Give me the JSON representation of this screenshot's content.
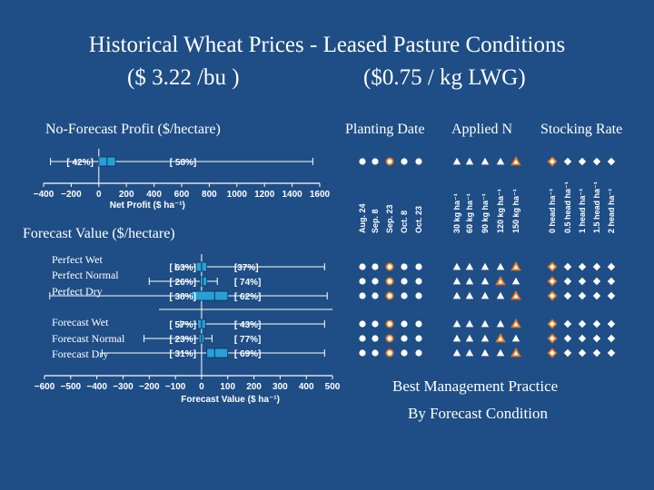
{
  "title": {
    "line1": "Historical Wheat Prices - Leased Pasture Conditions",
    "price_wheat": "($ 3.22 /bu )",
    "price_lwg": "($0.75 / kg LWG)"
  },
  "nofc_label": "No-Forecast Profit ($/hectare)",
  "column_headers": {
    "planting": "Planting Date",
    "nitrogen": "Applied N",
    "stocking": "Stocking Rate"
  },
  "forecast_label": "Forecast Value ($/hectare)",
  "bmp": {
    "line1": "Best Management Practice",
    "line2": "By Forecast Condition"
  },
  "col_labels": {
    "planting": [
      "Aug. 24",
      "Sep. 8",
      "Sep. 23",
      "Oct. 8",
      "Oct. 23"
    ],
    "nitrogen": [
      "30 kg ha-1",
      "60 kg ha-1",
      "90 kg ha-1",
      "120 kg ha-1",
      "150 kg ha-1"
    ],
    "stocking": [
      "0 head ha-1",
      "0.5 head ha-1",
      "1 head ha-1",
      "1.5 head ha-1",
      "2 head ha-1"
    ]
  },
  "colors": {
    "background": "#1f4e86",
    "box": "#27a0d6",
    "highlight": "#e8761c",
    "marker": "#ffffff"
  },
  "chart_data": [
    {
      "type": "box",
      "title": "No-Forecast Profit ($/hectare)",
      "xlabel": "Net Profit ($ ha-1)",
      "xlim": [
        -400,
        1600
      ],
      "xticks": [
        -400,
        -200,
        0,
        200,
        400,
        600,
        800,
        1000,
        1200,
        1400,
        1600
      ],
      "rows": [
        {
          "name": "",
          "min": -350,
          "q1": 0,
          "median": 60,
          "q3": 120,
          "max": 1550,
          "below_zero_pct": "[ 42%]",
          "above_zero_pct": "[ 58%]"
        }
      ]
    },
    {
      "type": "box",
      "title": "Forecast Value ($/hectare)",
      "xlabel": "Forecast Value ($ ha-1)",
      "xlim": [
        -600,
        500
      ],
      "xticks": [
        -600,
        -500,
        -400,
        -300,
        -200,
        -100,
        0,
        100,
        200,
        300,
        400,
        500
      ],
      "rows": [
        {
          "name": "Perfect Wet",
          "min": -100,
          "q1": -20,
          "median": 0,
          "q3": 20,
          "max": 470,
          "below_zero_pct": "[ 63%]",
          "above_zero_pct": "[37%]"
        },
        {
          "name": "Perfect Normal",
          "min": -200,
          "q1": -5,
          "median": 5,
          "q3": 20,
          "max": 60,
          "below_zero_pct": "[ 26%]",
          "above_zero_pct": "[ 74%]"
        },
        {
          "name": "Perfect Dry",
          "min": -580,
          "q1": -40,
          "median": 50,
          "q3": 100,
          "max": 480,
          "below_zero_pct": "[ 38%]",
          "above_zero_pct": "[ 62%]"
        },
        {
          "name": "Forecast Wet",
          "min": -80,
          "q1": -15,
          "median": 0,
          "q3": 15,
          "max": 470,
          "below_zero_pct": "[ 57%]",
          "above_zero_pct": "[ 43%]"
        },
        {
          "name": "Forecast  Normal",
          "min": -220,
          "q1": -10,
          "median": 0,
          "q3": 10,
          "max": 40,
          "below_zero_pct": "[ 23%]",
          "above_zero_pct": "[ 77%]"
        },
        {
          "name": "Forecast  Dry",
          "min": -380,
          "q1": 20,
          "median": 50,
          "q3": 100,
          "max": 470,
          "below_zero_pct": "[ 31%]",
          "above_zero_pct": "[ 69%]"
        }
      ]
    },
    {
      "type": "table",
      "title": "Best Management Practice By Forecast Condition",
      "columns": {
        "planting": "Planting Date",
        "nitrogen": "Applied N",
        "stocking": "Stocking Rate"
      },
      "rows": [
        {
          "condition": "No-Forecast",
          "planting": "Sep. 23",
          "nitrogen": "150 kg ha-1",
          "stocking": "0 head ha-1"
        },
        {
          "condition": "Perfect Wet",
          "planting": "Sep. 23",
          "nitrogen": "150 kg ha-1",
          "stocking": "0 head ha-1"
        },
        {
          "condition": "Perfect Normal",
          "planting": "Sep. 23",
          "nitrogen": "120 kg ha-1",
          "stocking": "0 head ha-1"
        },
        {
          "condition": "Perfect Dry",
          "planting": "Sep. 23",
          "nitrogen": "150 kg ha-1",
          "stocking": "0 head ha-1"
        },
        {
          "condition": "Forecast Wet",
          "planting": "Sep. 23",
          "nitrogen": "150 kg ha-1",
          "stocking": "0 head ha-1"
        },
        {
          "condition": "Forecast  Normal",
          "planting": "Sep. 23",
          "nitrogen": "120 kg ha-1",
          "stocking": "0 head ha-1"
        },
        {
          "condition": "Forecast  Dry",
          "planting": "Sep. 23",
          "nitrogen": "150 kg ha-1",
          "stocking": "0 head ha-1"
        }
      ]
    }
  ]
}
